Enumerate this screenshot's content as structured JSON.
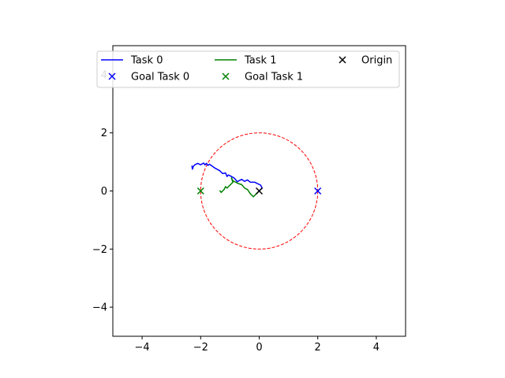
{
  "chart_data": {
    "type": "line",
    "title": "",
    "xlabel": "",
    "ylabel": "",
    "xlim": [
      -5,
      5
    ],
    "ylim": [
      -5,
      5
    ],
    "xticks": [
      -4,
      -2,
      0,
      2,
      4
    ],
    "yticks": [
      -4,
      -2,
      0,
      2,
      4
    ],
    "xtick_labels": [
      "−4",
      "−2",
      "0",
      "2",
      "4"
    ],
    "ytick_labels": [
      "−4",
      "−2",
      "0",
      "2",
      "4"
    ],
    "grid": false,
    "legend_position": "top",
    "legend": [
      {
        "label": "Task 0",
        "kind": "line",
        "color": "#0000ff"
      },
      {
        "label": "Task 1",
        "kind": "line",
        "color": "#008000"
      },
      {
        "label": "Origin",
        "kind": "x-marker",
        "color": "#000000"
      },
      {
        "label": "Goal Task 0",
        "kind": "x-marker",
        "color": "#0000ff"
      },
      {
        "label": "Goal Task 1",
        "kind": "x-marker",
        "color": "#008000"
      }
    ],
    "circle": {
      "center": [
        0,
        0
      ],
      "radius": 2,
      "color": "#ff0000",
      "style": "dashed"
    },
    "series": [
      {
        "name": "Task 0",
        "color": "#0000ff",
        "points": [
          [
            0.0,
            0.0
          ],
          [
            0.1,
            0.1
          ],
          [
            0.05,
            0.2
          ],
          [
            -0.05,
            0.25
          ],
          [
            -0.15,
            0.3
          ],
          [
            -0.3,
            0.3
          ],
          [
            -0.4,
            0.38
          ],
          [
            -0.5,
            0.33
          ],
          [
            -0.6,
            0.4
          ],
          [
            -0.75,
            0.32
          ],
          [
            -0.85,
            0.44
          ],
          [
            -0.95,
            0.5
          ],
          [
            -1.05,
            0.55
          ],
          [
            -1.1,
            0.5
          ],
          [
            -1.15,
            0.62
          ],
          [
            -1.25,
            0.6
          ],
          [
            -1.35,
            0.7
          ],
          [
            -1.5,
            0.78
          ],
          [
            -1.6,
            0.85
          ],
          [
            -1.7,
            0.92
          ],
          [
            -1.75,
            0.88
          ],
          [
            -1.8,
            0.95
          ],
          [
            -1.85,
            0.9
          ],
          [
            -1.9,
            0.96
          ],
          [
            -2.0,
            0.9
          ],
          [
            -2.1,
            0.95
          ],
          [
            -2.2,
            0.9
          ],
          [
            -2.25,
            0.85
          ],
          [
            -2.28,
            0.75
          ],
          [
            -2.3,
            0.87
          ]
        ]
      },
      {
        "name": "Task 1",
        "color": "#008000",
        "points": [
          [
            0.0,
            0.0
          ],
          [
            -0.1,
            -0.1
          ],
          [
            -0.2,
            -0.2
          ],
          [
            -0.3,
            -0.1
          ],
          [
            -0.4,
            0.05
          ],
          [
            -0.5,
            0.1
          ],
          [
            -0.6,
            0.22
          ],
          [
            -0.7,
            0.25
          ],
          [
            -0.8,
            0.3
          ],
          [
            -0.9,
            0.35
          ],
          [
            -0.95,
            0.45
          ],
          [
            -0.9,
            0.3
          ],
          [
            -1.0,
            0.2
          ],
          [
            -1.05,
            0.15
          ],
          [
            -1.1,
            0.1
          ],
          [
            -1.15,
            0.15
          ],
          [
            -1.2,
            0.05
          ],
          [
            -1.25,
            0.0
          ],
          [
            -1.3,
            -0.05
          ],
          [
            -1.35,
            0.02
          ]
        ]
      }
    ],
    "markers": [
      {
        "name": "Origin",
        "x": 0,
        "y": 0,
        "color": "#000000"
      },
      {
        "name": "Goal Task 0",
        "x": 2,
        "y": 0,
        "color": "#0000ff"
      },
      {
        "name": "Goal Task 1",
        "x": -2,
        "y": 0,
        "color": "#008000"
      }
    ]
  }
}
